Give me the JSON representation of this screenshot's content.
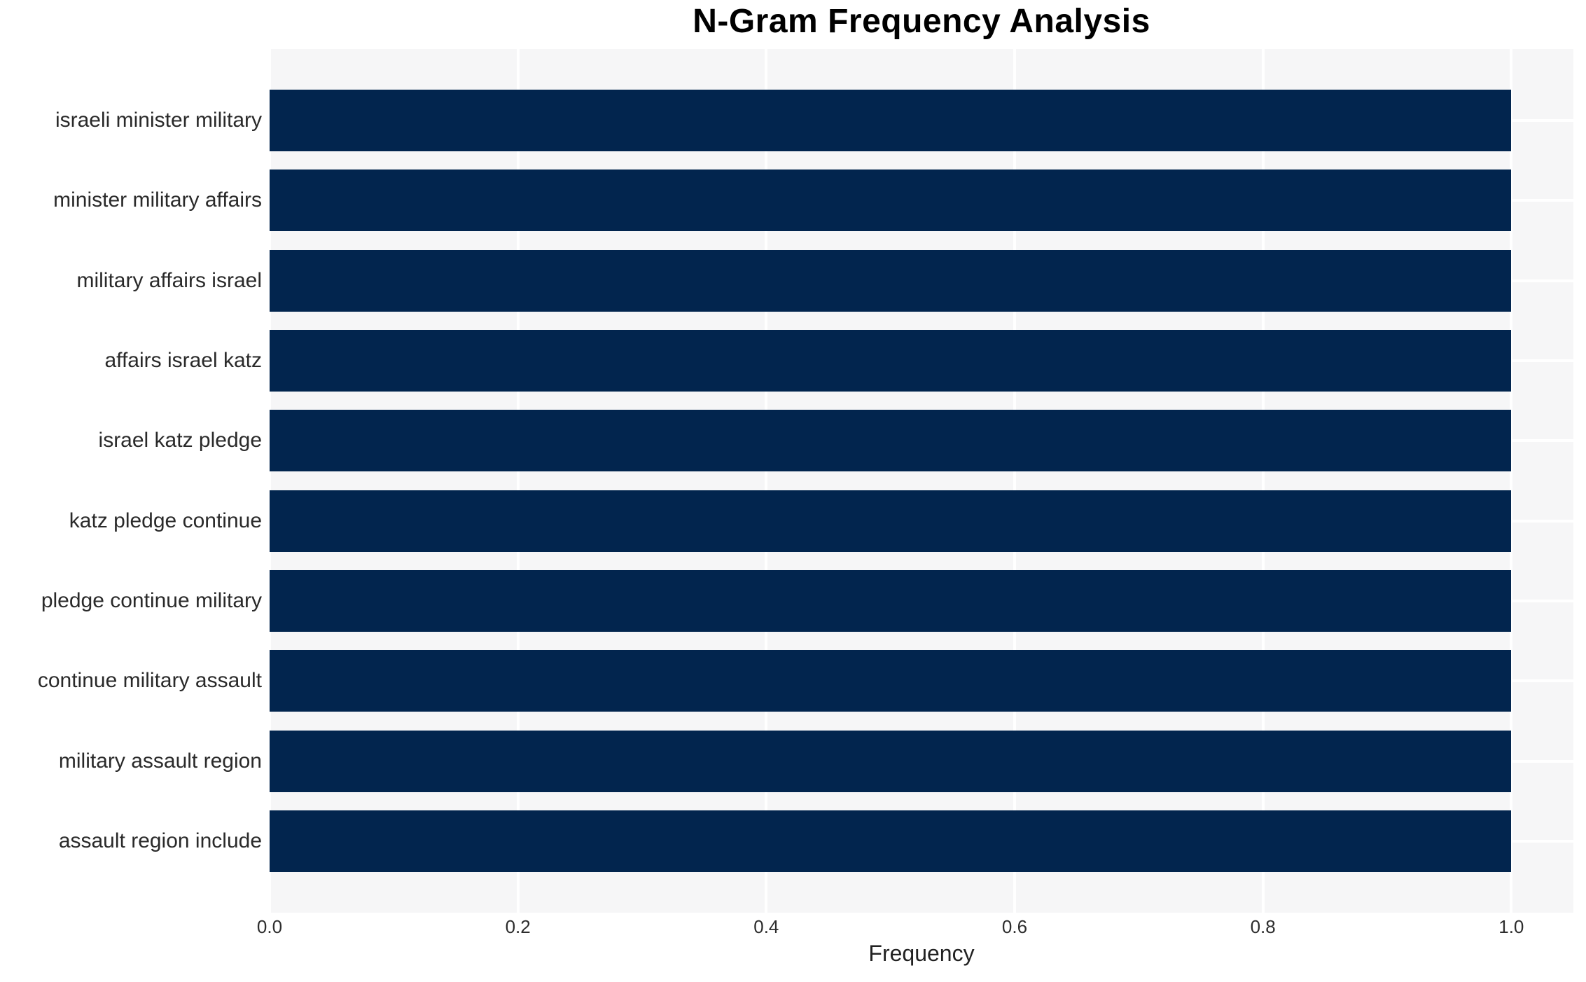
{
  "chart_data": {
    "type": "bar",
    "orientation": "horizontal",
    "title": "N-Gram Frequency Analysis",
    "xlabel": "Frequency",
    "ylabel": "",
    "categories": [
      "israeli minister military",
      "minister military affairs",
      "military affairs israel",
      "affairs israel katz",
      "israel katz pledge",
      "katz pledge continue",
      "pledge continue military",
      "continue military assault",
      "military assault region",
      "assault region include"
    ],
    "values": [
      1.0,
      1.0,
      1.0,
      1.0,
      1.0,
      1.0,
      1.0,
      1.0,
      1.0,
      1.0
    ],
    "xlim": [
      0,
      1.05
    ],
    "x_ticks": [
      0.0,
      0.2,
      0.4,
      0.6,
      0.8,
      1.0
    ],
    "x_tick_labels": [
      "0.0",
      "0.2",
      "0.4",
      "0.6",
      "0.8",
      "1.0"
    ],
    "grid": true,
    "legend": false,
    "colors": {
      "bar": "#02254e",
      "plot_bg": "#f6f6f7",
      "grid": "#ffffff",
      "title": "#000000",
      "tick_text": "#2d2d2d",
      "category_text": "#2a2a2a",
      "figure_bg": "#ffffff"
    }
  }
}
